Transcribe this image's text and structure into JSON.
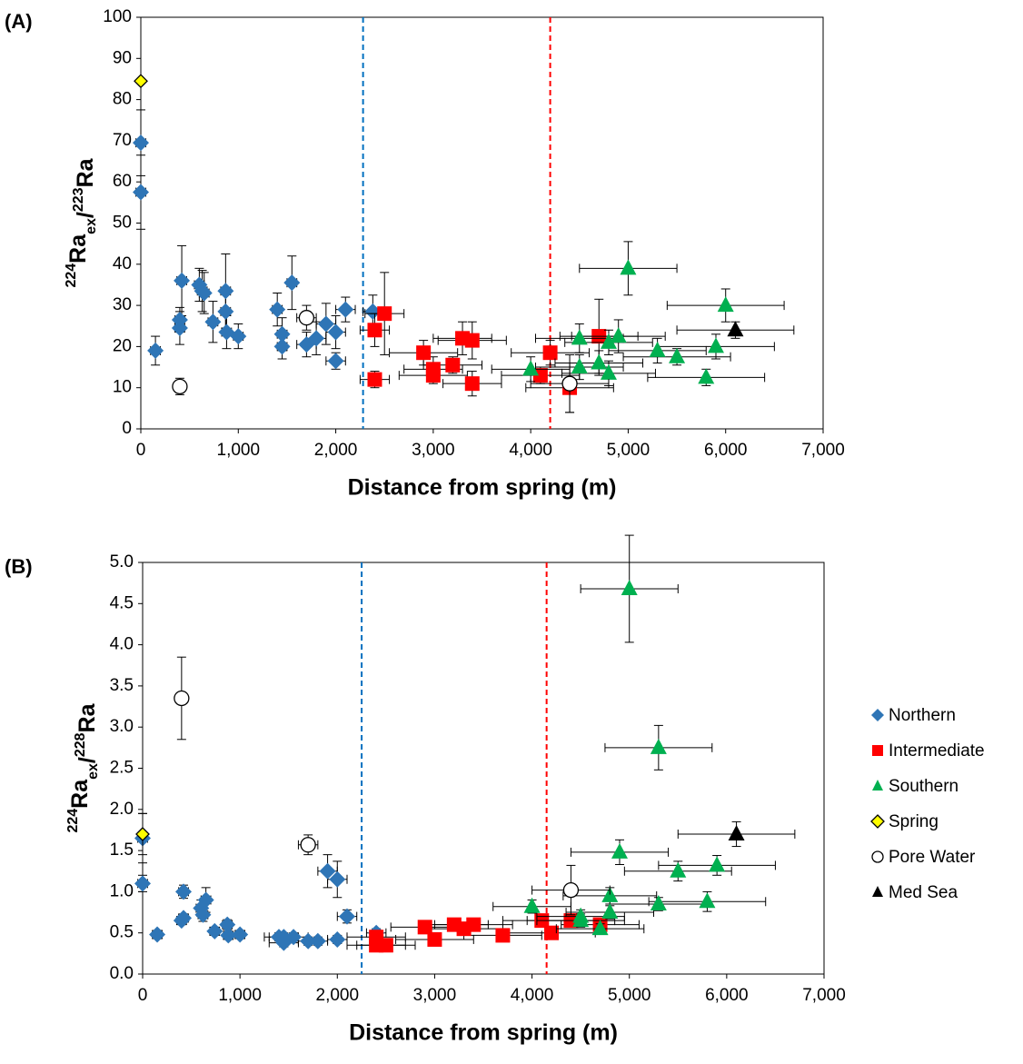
{
  "chart_data": [
    {
      "type": "scatter",
      "panel_label": "(A)",
      "x_label": "Distance from spring (m)",
      "y_label_parts": [
        "224",
        "Ra",
        "ex",
        "/",
        "223",
        "Ra"
      ],
      "xlim": [
        0,
        7000
      ],
      "ylim": [
        0,
        100
      ],
      "xticks": [
        0,
        {
          "value": 1000,
          "label": "1,000"
        },
        {
          "value": 2000,
          "label": "2,000"
        },
        {
          "value": 3000,
          "label": "3,000"
        },
        {
          "value": 4000,
          "label": "4,000"
        },
        {
          "value": 5000,
          "label": "5,000"
        },
        {
          "value": 6000,
          "label": "6,000"
        },
        {
          "value": 7000,
          "label": "7,000"
        }
      ],
      "yticks": [
        0,
        10,
        20,
        30,
        40,
        50,
        60,
        70,
        80,
        90,
        100
      ],
      "vlines": [
        {
          "x": 2280,
          "color": "#0070c0"
        },
        {
          "x": 4200,
          "color": "#ff0000"
        }
      ],
      "series": [
        {
          "marker": "diamond",
          "color": "#2e75b6",
          "x": [
            0,
            0,
            150,
            400,
            400,
            420,
            600,
            630,
            650,
            740,
            870,
            870,
            880,
            1000,
            1400,
            1450,
            1450,
            1550,
            1700,
            1800,
            1900,
            2000,
            2000,
            2100,
            2380
          ],
          "values": [
            69.5,
            57.5,
            19,
            26.5,
            24.5,
            36,
            35,
            33.5,
            33,
            26,
            33.5,
            28.5,
            23.5,
            22.5,
            29,
            23,
            20,
            35.5,
            20.5,
            22,
            25.5,
            16.5,
            23.5,
            29,
            28.5
          ],
          "xerr": [
            50,
            50,
            50,
            50,
            50,
            50,
            50,
            50,
            50,
            50,
            50,
            50,
            50,
            50,
            50,
            50,
            50,
            50,
            100,
            100,
            100,
            100,
            100,
            100,
            100
          ],
          "yerr": [
            8,
            9,
            3.5,
            3,
            4,
            8.5,
            4,
            5,
            5,
            5,
            9,
            5,
            4,
            3,
            4,
            4,
            3,
            6.5,
            3,
            4,
            5,
            2,
            4,
            3,
            4
          ]
        },
        {
          "marker": "square",
          "color": "#ff0000",
          "x": [
            2400,
            2400,
            2500,
            2900,
            3000,
            3000,
            3200,
            3300,
            3400,
            3400,
            4100,
            4200,
            4400,
            4700
          ],
          "values": [
            24,
            12,
            28,
            18.5,
            14.5,
            13,
            15.5,
            22,
            21.5,
            11,
            13,
            18.5,
            10,
            22.5
          ],
          "xerr": [
            150,
            150,
            200,
            350,
            300,
            350,
            300,
            300,
            350,
            300,
            400,
            400,
            450,
            400
          ],
          "yerr": [
            4,
            2,
            10,
            3,
            3,
            2,
            2,
            4,
            4.5,
            3,
            2,
            3,
            6,
            9
          ]
        },
        {
          "marker": "triangle",
          "color": "#00b050",
          "x": [
            4000,
            4500,
            4500,
            4700,
            4800,
            4800,
            4900,
            5000,
            5300,
            5500,
            5800,
            5900,
            6000
          ],
          "values": [
            14.5,
            22,
            15,
            16,
            13.5,
            21,
            22.5,
            39,
            19,
            17.5,
            12.5,
            20,
            30
          ],
          "xerr": [
            400,
            450,
            450,
            450,
            480,
            450,
            480,
            500,
            500,
            550,
            600,
            600,
            600
          ],
          "yerr": [
            3,
            3.5,
            3,
            3,
            3,
            3,
            4,
            6.5,
            3,
            2,
            2,
            3,
            4
          ]
        },
        {
          "marker": "diamond-small",
          "color": "#ffff00",
          "x": [
            0
          ],
          "values": [
            84.5
          ],
          "xerr": [
            0
          ],
          "yerr": [
            0
          ]
        },
        {
          "marker": "circle",
          "color": "#ffffff",
          "x": [
            400,
            1700,
            4400
          ],
          "values": [
            10.3,
            27,
            11
          ],
          "xerr": [
            50,
            100,
            400
          ],
          "yerr": [
            2,
            3,
            7
          ]
        },
        {
          "marker": "triangle",
          "color": "#000000",
          "x": [
            6100
          ],
          "values": [
            24
          ],
          "xerr": [
            600
          ],
          "yerr": [
            2
          ]
        }
      ]
    },
    {
      "type": "scatter",
      "panel_label": "(B)",
      "x_label": "Distance from spring (m)",
      "y_label_parts": [
        "224",
        "Ra",
        "ex",
        "/",
        "228",
        "Ra"
      ],
      "xlim": [
        0,
        7000
      ],
      "ylim": [
        0,
        5
      ],
      "xticks": [
        0,
        {
          "value": 1000,
          "label": "1,000"
        },
        {
          "value": 2000,
          "label": "2,000"
        },
        {
          "value": 3000,
          "label": "3,000"
        },
        {
          "value": 4000,
          "label": "4,000"
        },
        {
          "value": 5000,
          "label": "5,000"
        },
        {
          "value": 6000,
          "label": "6,000"
        },
        {
          "value": 7000,
          "label": "7,000"
        }
      ],
      "yticks": [
        {
          "value": 0,
          "label": "0.0"
        },
        0.5,
        {
          "value": 1,
          "label": "1.0"
        },
        1.5,
        {
          "value": 2,
          "label": "2.0"
        },
        2.5,
        {
          "value": 3,
          "label": "3.0"
        },
        3.5,
        {
          "value": 4,
          "label": "4.0"
        },
        4.5,
        {
          "value": 5,
          "label": "5.0"
        }
      ],
      "vlines": [
        {
          "x": 2250,
          "color": "#0070c0"
        },
        {
          "x": 4150,
          "color": "#ff0000"
        }
      ],
      "legend": "right",
      "series": [
        {
          "name": "Northern",
          "marker": "diamond",
          "color": "#2e75b6",
          "x": [
            0,
            0,
            150,
            400,
            420,
            420,
            600,
            620,
            650,
            740,
            870,
            880,
            1000,
            1400,
            1450,
            1450,
            1550,
            1700,
            1800,
            1900,
            2000,
            2000,
            2100,
            2400
          ],
          "values": [
            1.65,
            1.1,
            0.48,
            0.65,
            0.68,
            1.0,
            0.8,
            0.72,
            0.9,
            0.52,
            0.6,
            0.47,
            0.48,
            0.45,
            0.38,
            0.45,
            0.45,
            0.4,
            0.4,
            1.25,
            1.15,
            0.42,
            0.7,
            0.5
          ],
          "xerr": [
            50,
            50,
            50,
            50,
            50,
            50,
            50,
            50,
            50,
            50,
            50,
            50,
            50,
            150,
            150,
            150,
            150,
            100,
            100,
            100,
            100,
            100,
            100,
            100
          ],
          "yerr": [
            0.3,
            0.1,
            0.05,
            0.05,
            0.05,
            0.08,
            0.1,
            0.08,
            0.15,
            0.05,
            0.06,
            0.05,
            0.05,
            0.05,
            0.05,
            0.05,
            0.05,
            0.05,
            0.05,
            0.2,
            0.22,
            0.05,
            0.08,
            0.05
          ]
        },
        {
          "name": "Intermediate",
          "marker": "square",
          "color": "#ff0000",
          "x": [
            2400,
            2400,
            2500,
            2900,
            3000,
            3200,
            3300,
            3400,
            3700,
            4100,
            4200,
            4400,
            4700
          ],
          "values": [
            0.45,
            0.35,
            0.35,
            0.57,
            0.42,
            0.6,
            0.55,
            0.6,
            0.47,
            0.65,
            0.5,
            0.65,
            0.6
          ],
          "xerr": [
            300,
            300,
            300,
            350,
            400,
            350,
            400,
            400,
            400,
            400,
            450,
            450,
            400
          ],
          "yerr": [
            0.05,
            0.05,
            0.05,
            0.05,
            0.05,
            0.05,
            0.05,
            0.05,
            0.05,
            0.05,
            0.05,
            0.05,
            0.05
          ]
        },
        {
          "name": "Southern",
          "marker": "triangle",
          "color": "#00b050",
          "x": [
            4000,
            4500,
            4500,
            4700,
            4800,
            4800,
            4900,
            5000,
            5300,
            5300,
            5500,
            5800,
            5900
          ],
          "values": [
            0.82,
            0.7,
            0.65,
            0.55,
            0.95,
            0.75,
            1.48,
            4.68,
            2.75,
            0.85,
            1.25,
            0.88,
            1.32
          ],
          "xerr": [
            400,
            450,
            450,
            450,
            480,
            450,
            500,
            500,
            550,
            500,
            550,
            600,
            600
          ],
          "yerr": [
            0.08,
            0.08,
            0.08,
            0.06,
            0.1,
            0.08,
            0.15,
            0.65,
            0.27,
            0.08,
            0.12,
            0.12,
            0.12
          ]
        },
        {
          "name": "Spring",
          "marker": "diamond-small",
          "color": "#ffff00",
          "x": [
            0
          ],
          "values": [
            1.7
          ],
          "xerr": [
            0
          ],
          "yerr": [
            0.25
          ]
        },
        {
          "name": "Pore Water",
          "marker": "circle",
          "color": "#ffffff",
          "x": [
            400,
            1700,
            4400
          ],
          "values": [
            3.35,
            1.57,
            1.02
          ],
          "xerr": [
            50,
            100,
            400
          ],
          "yerr": [
            0.5,
            0.12,
            0.3
          ]
        },
        {
          "name": "Med Sea",
          "marker": "triangle",
          "color": "#000000",
          "x": [
            6100
          ],
          "values": [
            1.7
          ],
          "xerr": [
            600
          ],
          "yerr": [
            0.15
          ]
        }
      ]
    }
  ]
}
